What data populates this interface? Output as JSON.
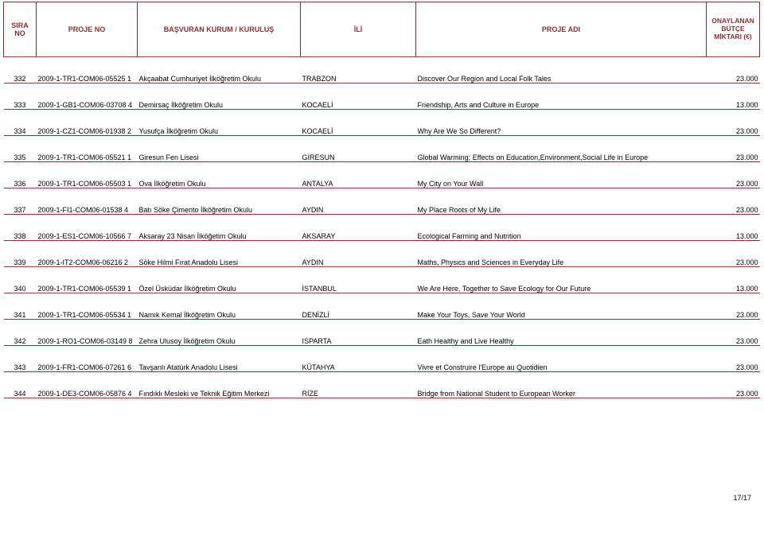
{
  "header": {
    "sira": "SIRA NO",
    "proje": "PROJE NO",
    "kurum": "BAŞVURAN KURUM / KURULUŞ",
    "ili": "İLİ",
    "adi": "PROJE ADI",
    "butce": "ONAYLANAN BÜTÇE MİKTARI (€)"
  },
  "rows": [
    {
      "sira": "332",
      "proje": "2009-1-TR1-COM06-05525 1",
      "kurum": "Akçaabat Cumhuriyet İlköğretim Okulu",
      "ili": "TRABZON",
      "adi": "Discover Our Region and Local Folk Tales",
      "butce": "23.000"
    },
    {
      "sira": "333",
      "proje": "2009-1-GB1-COM06-03708 4",
      "kurum": "Demirsaç İlköğretim Okulu",
      "ili": "KOCAELİ",
      "adi": "Friendship, Arts and Culture in Europe",
      "butce": "13.000"
    },
    {
      "sira": "334",
      "proje": "2009-1-CZ1-COM06-01938 2",
      "kurum": "Yusufça İlköğretim Okulu",
      "ili": "KOCAELİ",
      "adi": "Why Are We So Different?",
      "butce": "23.000"
    },
    {
      "sira": "335",
      "proje": "2009-1-TR1-COM06-05521 1",
      "kurum": "Giresun Fen Lisesi",
      "ili": "GİRESUN",
      "adi": "Global Warming; Effects on Education,Environment,Social Life in Europe",
      "butce": "23.000"
    },
    {
      "sira": "336",
      "proje": "2009-1-TR1-COM06-05503 1",
      "kurum": "Ova İlköğretim Okulu",
      "ili": "ANTALYA",
      "adi": "My City on Your Wall",
      "butce": "23.000"
    },
    {
      "sira": "337",
      "proje": "2009-1-FI1-COM06-01538 4",
      "kurum": "Batı Söke Çimento İlköğretim Okulu",
      "ili": "AYDIN",
      "adi": "My Place Roots of My Life",
      "butce": "23.000"
    },
    {
      "sira": "338",
      "proje": "2009-1-ES1-COM06-10566 7",
      "kurum": "Aksaray 23 Nisan İlköğetim Okulu",
      "ili": "AKSARAY",
      "adi": "Ecological Farming and Nutrition",
      "butce": "13.000"
    },
    {
      "sira": "339",
      "proje": "2009-1-IT2-COM06-06216 2",
      "kurum": "Söke Hilmi Fırat Anadolu Lisesi",
      "ili": "AYDIN",
      "adi": "Maths, Physics and Sciences in Everyday Life",
      "butce": "23.000"
    },
    {
      "sira": "340",
      "proje": "2009-1-TR1-COM06-05539 1",
      "kurum": "Özel Üsküdar İlköğretim Okulu",
      "ili": "İSTANBUL",
      "adi": "We Are Here, Together to Save Ecology for Our Future",
      "butce": "13.000"
    },
    {
      "sira": "341",
      "proje": "2009-1-TR1-COM06-05534 1",
      "kurum": "Namık Kemal İlköğretim Okulu",
      "ili": "DENİZLİ",
      "adi": "Make Your Toys, Save Your World",
      "butce": "23.000"
    },
    {
      "sira": "342",
      "proje": "2009-1-RO1-COM06-03149 8",
      "kurum": "Zehra Ulusoy İlköğretim Okulu",
      "ili": "ISPARTA",
      "adi": "Eath Healthy and Live Healthy",
      "butce": "23.000"
    },
    {
      "sira": "343",
      "proje": "2009-1-FR1-COM06-07261 6",
      "kurum": "Tavşanlı Atatürk Anadolu Lisesi",
      "ili": "KÜTAHYA",
      "adi": "Vivre et Construire l'Europe au Quotidien",
      "butce": "23.000"
    },
    {
      "sira": "344",
      "proje": "2009-1-DE3-COM06-05876 4",
      "kurum": "Fındıklı Mesleki ve Teknik Eğitim Merkezi",
      "ili": "RİZE",
      "adi": "Bridge from National Student to European Worker",
      "butce": "23.000"
    }
  ],
  "footer": {
    "page": "17/17"
  }
}
